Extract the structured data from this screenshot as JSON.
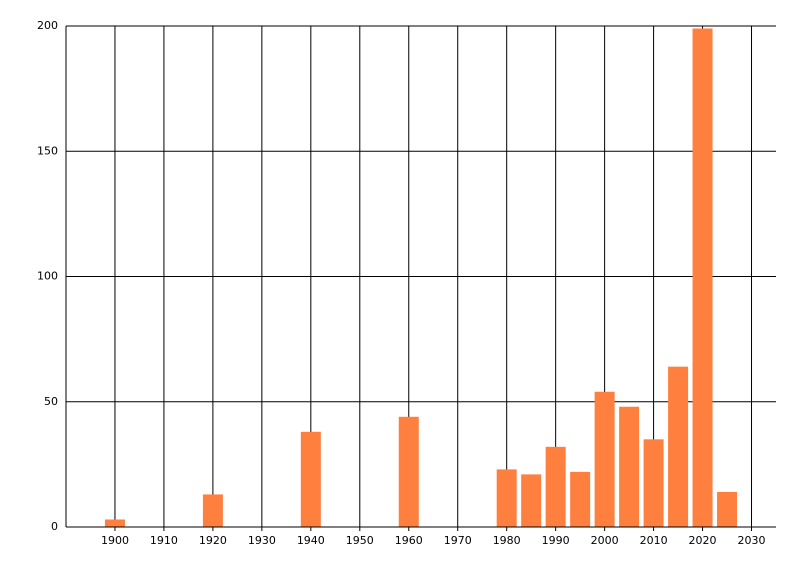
{
  "chart_data": {
    "type": "bar",
    "x": [
      1900,
      1920,
      1940,
      1960,
      1980,
      1985,
      1990,
      1995,
      2000,
      2005,
      2010,
      2015,
      2020,
      2025
    ],
    "values": [
      3,
      13,
      38,
      44,
      23,
      21,
      32,
      22,
      54,
      48,
      35,
      64,
      199,
      14
    ],
    "color": "#ff7f3f",
    "xlim": [
      1890,
      2035
    ],
    "xticks": [
      1900,
      1910,
      1920,
      1930,
      1940,
      1950,
      1960,
      1970,
      1980,
      1990,
      2000,
      2010,
      2020,
      2030
    ],
    "ylim": [
      0,
      200
    ],
    "yticks": [
      0,
      50,
      100,
      150,
      200
    ],
    "grid": true
  }
}
